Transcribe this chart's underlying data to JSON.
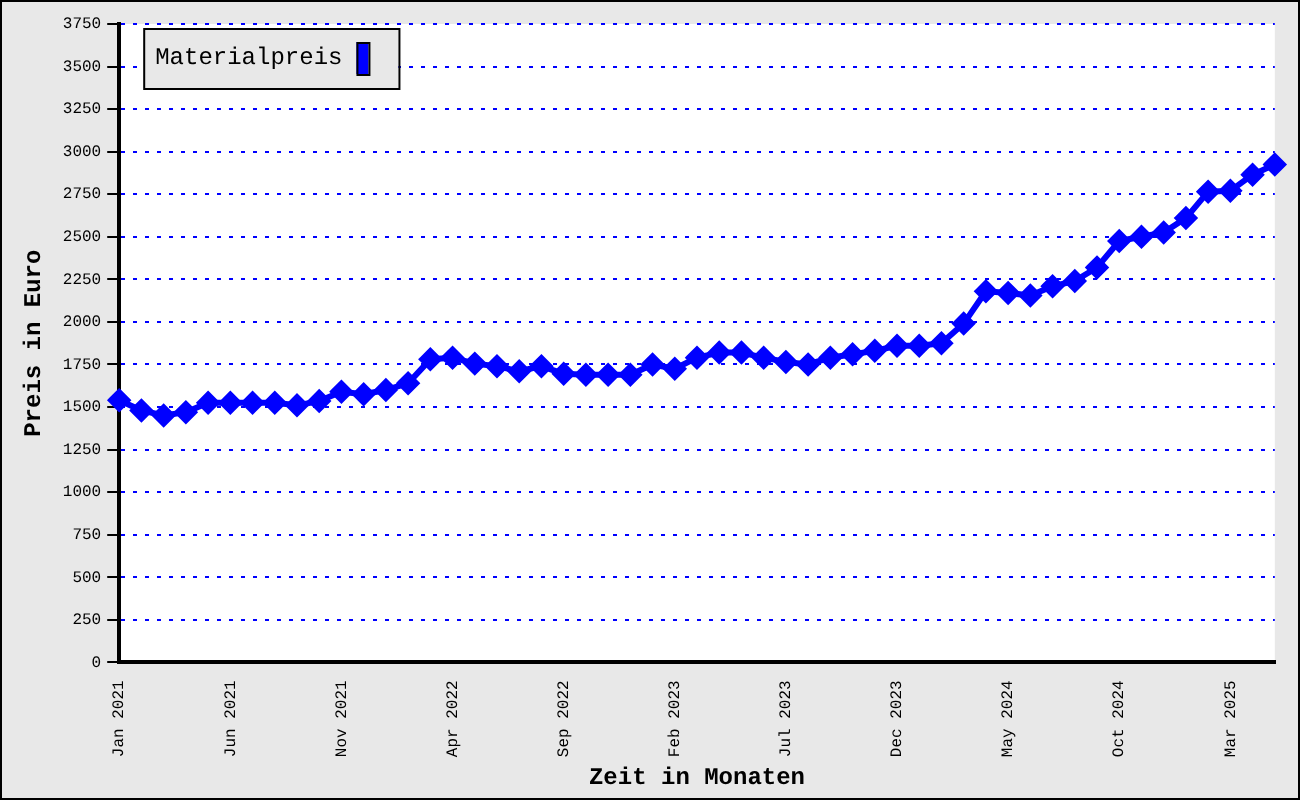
{
  "chart_data": {
    "type": "line",
    "xlabel": "Zeit in Monaten",
    "ylabel": "Preis in Euro",
    "categories": [
      "Jan 2021",
      null,
      null,
      null,
      null,
      "Jun 2021",
      null,
      null,
      null,
      null,
      "Nov 2021",
      null,
      null,
      null,
      null,
      "Apr 2022",
      null,
      null,
      null,
      null,
      "Sep 2022",
      null,
      null,
      null,
      null,
      "Feb 2023",
      null,
      null,
      null,
      null,
      "Jul 2023",
      null,
      null,
      null,
      null,
      "Dec 2023",
      null,
      null,
      null,
      null,
      "May 2024",
      null,
      null,
      null,
      null,
      "Oct 2024",
      null,
      null,
      null,
      null,
      "Mar 2025",
      null,
      null
    ],
    "series": [
      {
        "name": "Materialpreis",
        "color": "#0000ff",
        "values": [
          1540,
          1480,
          1450,
          1470,
          1525,
          1525,
          1525,
          1525,
          1510,
          1535,
          1590,
          1575,
          1600,
          1640,
          1780,
          1790,
          1755,
          1740,
          1710,
          1740,
          1695,
          1690,
          1690,
          1690,
          1750,
          1725,
          1790,
          1820,
          1820,
          1790,
          1765,
          1750,
          1790,
          1810,
          1830,
          1860,
          1860,
          1875,
          1990,
          2180,
          2170,
          2155,
          2210,
          2240,
          2320,
          2475,
          2500,
          2525,
          2610,
          2765,
          2770,
          2865,
          2925
        ]
      }
    ],
    "ylim": [
      0,
      3750
    ],
    "yticks": [
      0,
      250,
      500,
      750,
      1000,
      1250,
      1500,
      1750,
      2000,
      2250,
      2500,
      2750,
      3000,
      3250,
      3500,
      3750
    ],
    "grid": "y",
    "legend": "top left",
    "marker": "diamond",
    "line_style": "solid"
  }
}
